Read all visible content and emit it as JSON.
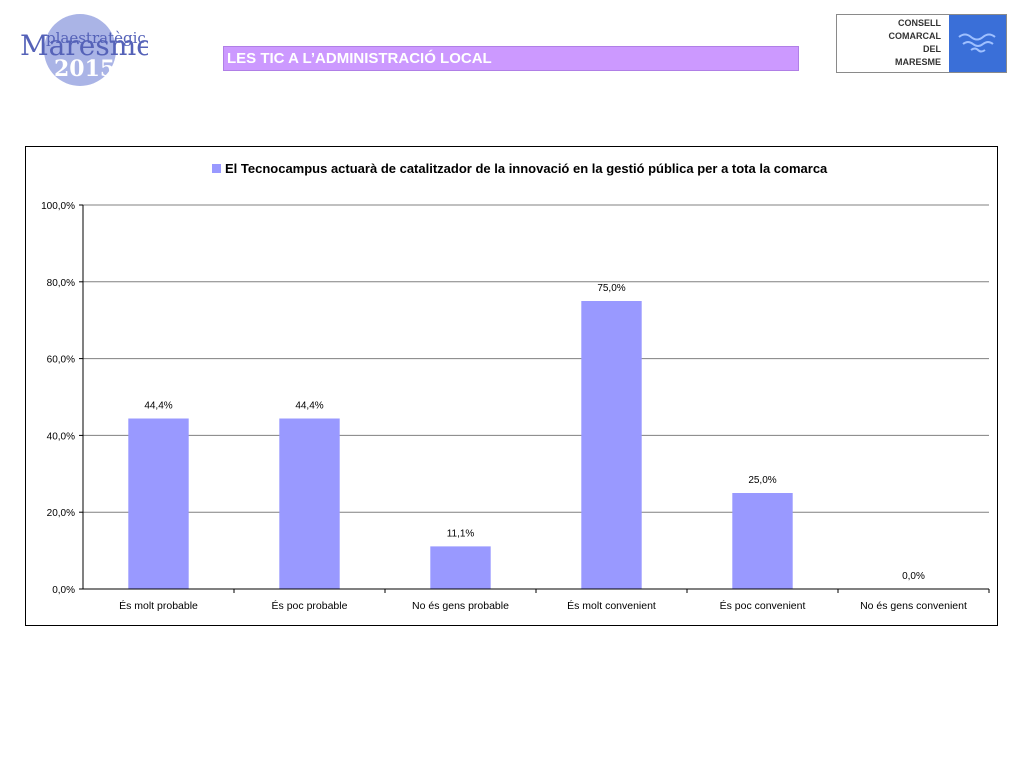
{
  "header": {
    "logo": {
      "line1": "plaestratègic",
      "line2": "Maresme",
      "line3": "2015"
    },
    "section_title": "LES TIC A L’ADMINISTRACIÓ LOCAL",
    "council": {
      "lines": [
        "CONSELL",
        "COMARCAL",
        "DEL",
        "MARESME"
      ]
    }
  },
  "colors": {
    "bar": "#9999ff",
    "title_bar": "#cc99ff",
    "council_blue": "#3a6fd8",
    "logo_circle": "#aab4e6",
    "logo_text": "#5562b8"
  },
  "chart_data": {
    "type": "bar",
    "categories": [
      "És molt probable",
      "És poc probable",
      "No és gens probable",
      "És molt convenient",
      "És poc convenient",
      "No és gens convenient"
    ],
    "series": [
      {
        "name": "El Tecnocampus actuarà de catalitzador de la innovació en la gestió pública per a tota la comarca",
        "values": [
          44.4,
          44.4,
          11.1,
          75.0,
          25.0,
          0.0
        ],
        "labels": [
          "44,4%",
          "44,4%",
          "11,1%",
          "75,0%",
          "25,0%",
          "0,0%"
        ]
      }
    ],
    "ylim": [
      0,
      100
    ],
    "yticks": [
      0,
      20,
      40,
      60,
      80,
      100
    ],
    "ytick_labels": [
      "0,0%",
      "20,0%",
      "40,0%",
      "60,0%",
      "80,0%",
      "100,0%"
    ],
    "legend_position": "top",
    "grid": true
  }
}
